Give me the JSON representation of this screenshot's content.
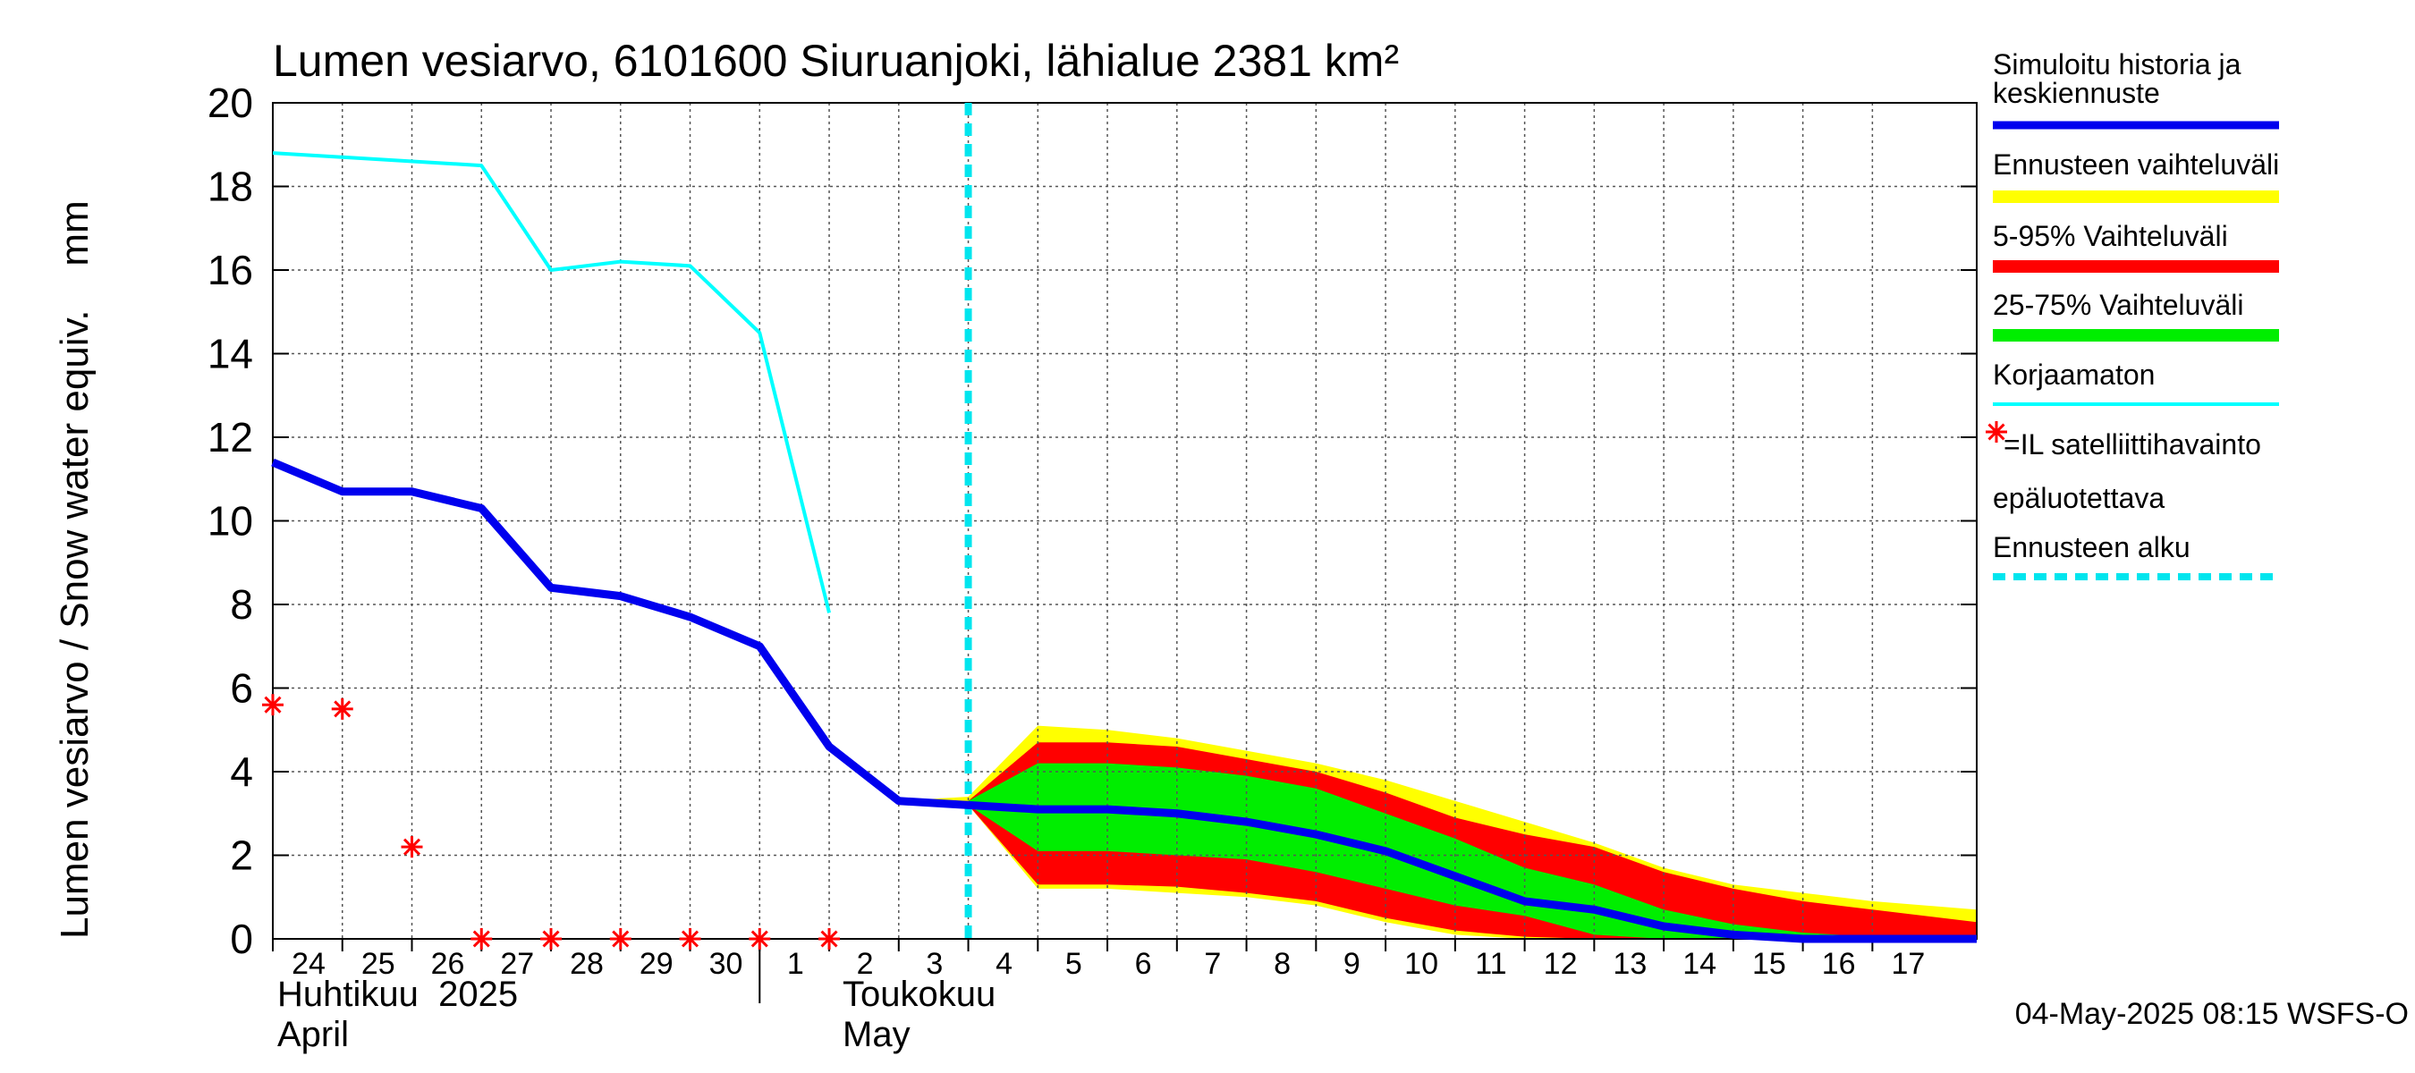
{
  "chart_data": {
    "type": "line",
    "title": "Lumen vesiarvo, 6101600 Siuruanjoki, lähialue 2381 km²",
    "ylabel": "Lumen vesiarvo / Snow water equiv.    mm",
    "ylim": [
      0,
      20
    ],
    "yticks": [
      "0",
      "2",
      "4",
      "6",
      "8",
      "10",
      "12",
      "14",
      "16",
      "18",
      "20"
    ],
    "xlim_days": [
      -10,
      14.5
    ],
    "x_tick_labels": [
      {
        "day": -10,
        "label": "24"
      },
      {
        "day": -9,
        "label": "25"
      },
      {
        "day": -8,
        "label": "26"
      },
      {
        "day": -7,
        "label": "27"
      },
      {
        "day": -6,
        "label": "28"
      },
      {
        "day": -5,
        "label": "29"
      },
      {
        "day": -4,
        "label": "30"
      },
      {
        "day": -3,
        "label": "1"
      },
      {
        "day": -2,
        "label": "2"
      },
      {
        "day": -1,
        "label": "3"
      },
      {
        "day": 0,
        "label": "4"
      },
      {
        "day": 1,
        "label": "5"
      },
      {
        "day": 2,
        "label": "6"
      },
      {
        "day": 3,
        "label": "7"
      },
      {
        "day": 4,
        "label": "8"
      },
      {
        "day": 5,
        "label": "9"
      },
      {
        "day": 6,
        "label": "10"
      },
      {
        "day": 7,
        "label": "11"
      },
      {
        "day": 8,
        "label": "12"
      },
      {
        "day": 9,
        "label": "13"
      },
      {
        "day": 10,
        "label": "14"
      },
      {
        "day": 11,
        "label": "15"
      },
      {
        "day": 12,
        "label": "16"
      },
      {
        "day": 13,
        "label": "17"
      }
    ],
    "month_labels": {
      "april_fi": "Huhtikuu  2025",
      "april_en": "April",
      "may_fi": "Toukokuu",
      "may_en": "May"
    },
    "forecast_start_day": 0,
    "series": [
      {
        "name": "Simuloitu historia ja keskiennuste",
        "color": "#0000ee",
        "x": [
          -10,
          -9,
          -8,
          -7,
          -6,
          -5,
          -4,
          -3,
          -2,
          -1,
          0,
          1,
          2,
          3,
          4,
          5,
          6,
          7,
          8,
          9,
          10,
          11,
          12,
          13,
          14.5
        ],
        "y": [
          11.4,
          10.7,
          10.7,
          10.3,
          8.4,
          8.2,
          7.7,
          7.0,
          4.6,
          3.3,
          3.2,
          3.1,
          3.1,
          3.0,
          2.8,
          2.5,
          2.1,
          1.5,
          0.9,
          0.7,
          0.3,
          0.1,
          0.0,
          0.0,
          0.0
        ]
      },
      {
        "name": "Korjaamaton",
        "color": "#00ffff",
        "x": [
          -10,
          -9,
          -7,
          -6,
          -5,
          -4,
          -3,
          -2
        ],
        "y": [
          18.8,
          18.7,
          18.5,
          16.0,
          16.2,
          16.1,
          14.5,
          7.8
        ]
      },
      {
        "name": "=IL satelliittihavainto epäluotettava",
        "color": "#ff0000",
        "marker": "asterisk",
        "x": [
          -10,
          -9,
          -8,
          -7,
          -6,
          -5,
          -4,
          -3,
          -2
        ],
        "y": [
          5.6,
          5.5,
          2.2,
          0.0,
          0.0,
          0.0,
          0.0,
          0.0,
          0.0
        ]
      }
    ],
    "bands": [
      {
        "name": "Ennusteen vaihteluväli",
        "color": "#ffff00",
        "x": [
          -1,
          0,
          1,
          2,
          3,
          4,
          5,
          6,
          7,
          8,
          9,
          10,
          11,
          12,
          13,
          14.5
        ],
        "upper": [
          3.3,
          3.4,
          5.1,
          5.0,
          4.8,
          4.5,
          4.2,
          3.8,
          3.3,
          2.8,
          2.3,
          1.7,
          1.3,
          1.1,
          0.9,
          0.7
        ],
        "lower": [
          3.3,
          3.2,
          1.2,
          1.2,
          1.1,
          1.0,
          0.8,
          0.4,
          0.1,
          0.0,
          0.0,
          0.0,
          0.0,
          0.0,
          0.0,
          0.0
        ]
      },
      {
        "name": "5-95% Vaihteluväli",
        "color": "#ff0000",
        "x": [
          -1,
          0,
          1,
          2,
          3,
          4,
          5,
          6,
          7,
          8,
          9,
          10,
          11,
          12,
          13,
          14.5
        ],
        "upper": [
          3.3,
          3.3,
          4.7,
          4.7,
          4.6,
          4.3,
          4.0,
          3.5,
          2.9,
          2.5,
          2.2,
          1.6,
          1.2,
          0.9,
          0.7,
          0.4
        ],
        "lower": [
          3.3,
          3.2,
          1.3,
          1.3,
          1.25,
          1.1,
          0.9,
          0.5,
          0.2,
          0.05,
          0.0,
          0.0,
          0.0,
          0.0,
          0.0,
          0.0
        ]
      },
      {
        "name": "25-75% Vaihteluväli",
        "color": "#00ee00",
        "x": [
          -1,
          0,
          1,
          2,
          3,
          4,
          5,
          6,
          7,
          8,
          9,
          10,
          11,
          12,
          13,
          14.5
        ],
        "upper": [
          3.3,
          3.3,
          4.2,
          4.2,
          4.1,
          3.9,
          3.6,
          3.0,
          2.4,
          1.7,
          1.3,
          0.7,
          0.35,
          0.15,
          0.05,
          0.0
        ],
        "lower": [
          3.3,
          3.2,
          2.1,
          2.1,
          2.0,
          1.9,
          1.6,
          1.2,
          0.8,
          0.55,
          0.1,
          0.0,
          0.0,
          0.0,
          0.0,
          0.0
        ]
      }
    ],
    "legend": {
      "placement": "right",
      "items": [
        {
          "label": "Simuloitu historia ja",
          "label2": "keskiennuste",
          "style": "line",
          "color": "#0000ee"
        },
        {
          "label": "Ennusteen vaihteluväli",
          "style": "band",
          "color": "#ffff00"
        },
        {
          "label": "5-95% Vaihteluväli",
          "style": "band",
          "color": "#ff0000"
        },
        {
          "label": "25-75% Vaihteluväli",
          "style": "band",
          "color": "#00ee00"
        },
        {
          "label": "Korjaamaton",
          "style": "thin",
          "color": "#00ffff"
        },
        {
          "label": "=IL satelliittihavainto",
          "label2": "epäluotettava",
          "style": "asterisk",
          "color": "#ff0000"
        },
        {
          "label": "Ennusteen alku",
          "style": "dashed",
          "color": "#00e5ee"
        }
      ]
    },
    "footer": "04-May-2025 08:15 WSFS-O",
    "grid": true
  }
}
